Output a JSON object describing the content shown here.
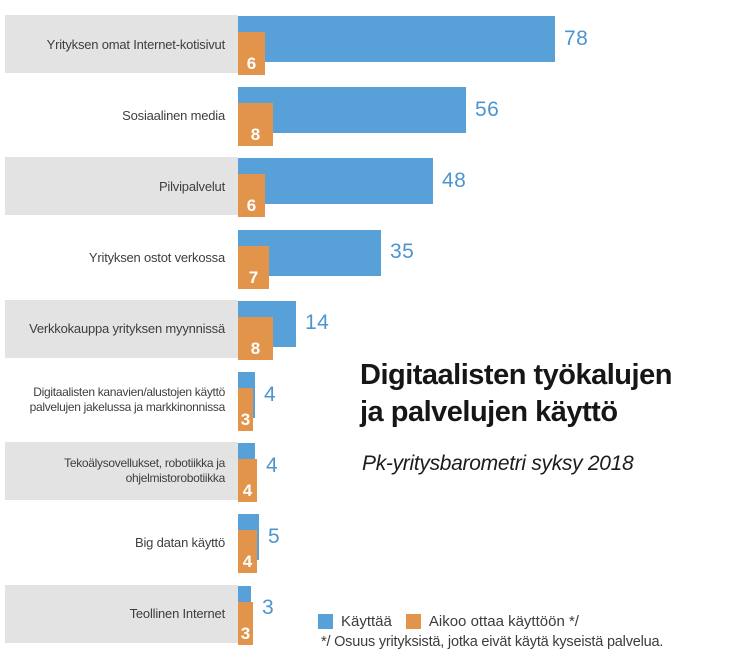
{
  "chart_data": {
    "type": "bar",
    "orientation": "horizontal",
    "title": "Digitaalisten työkalujen\nja palvelujen käyttö",
    "subtitle": "Pk-yritysbarometri syksy 2018",
    "categories": [
      "Yrityksen omat Internet-kotisivut",
      "Sosiaalinen media",
      "Pilvipalvelut",
      "Yrityksen ostot verkossa",
      "Verkkokauppa yrityksen myynnissä",
      "Digitaalisten kanavien/alustojen käyttö\npalvelujen jakelussa ja markkinonnissa",
      "Tekoälysovellukset, robotiikka ja\nohjelmistorobotiikka",
      "Big datan käyttö",
      "Teollinen Internet"
    ],
    "series": [
      {
        "name": "Käyttää",
        "color": "#57a0d8",
        "values": [
          78,
          56,
          48,
          35,
          14,
          4,
          4,
          5,
          3
        ]
      },
      {
        "name": "Aikoo ottaa käyttöön */",
        "color": "#e2954a",
        "values": [
          6,
          8,
          6,
          7,
          8,
          3,
          4,
          4,
          3
        ]
      }
    ],
    "value_range": [
      0,
      78
    ],
    "grid": false,
    "legend_position": "bottom-right",
    "footnote": "*/ Osuus yrityksistä, jotka eivät käytä kyseistä palvelua."
  },
  "colors": {
    "bar_blue": "#57a0d8",
    "bar_orange": "#e2954a",
    "value_label_blue": "#4c95d0",
    "value_label_white": "#ffffff",
    "row_band_gray": "#e3e3e3",
    "text_dark": "#3e3e3e",
    "title_black": "#161616",
    "background": "#ffffff"
  }
}
